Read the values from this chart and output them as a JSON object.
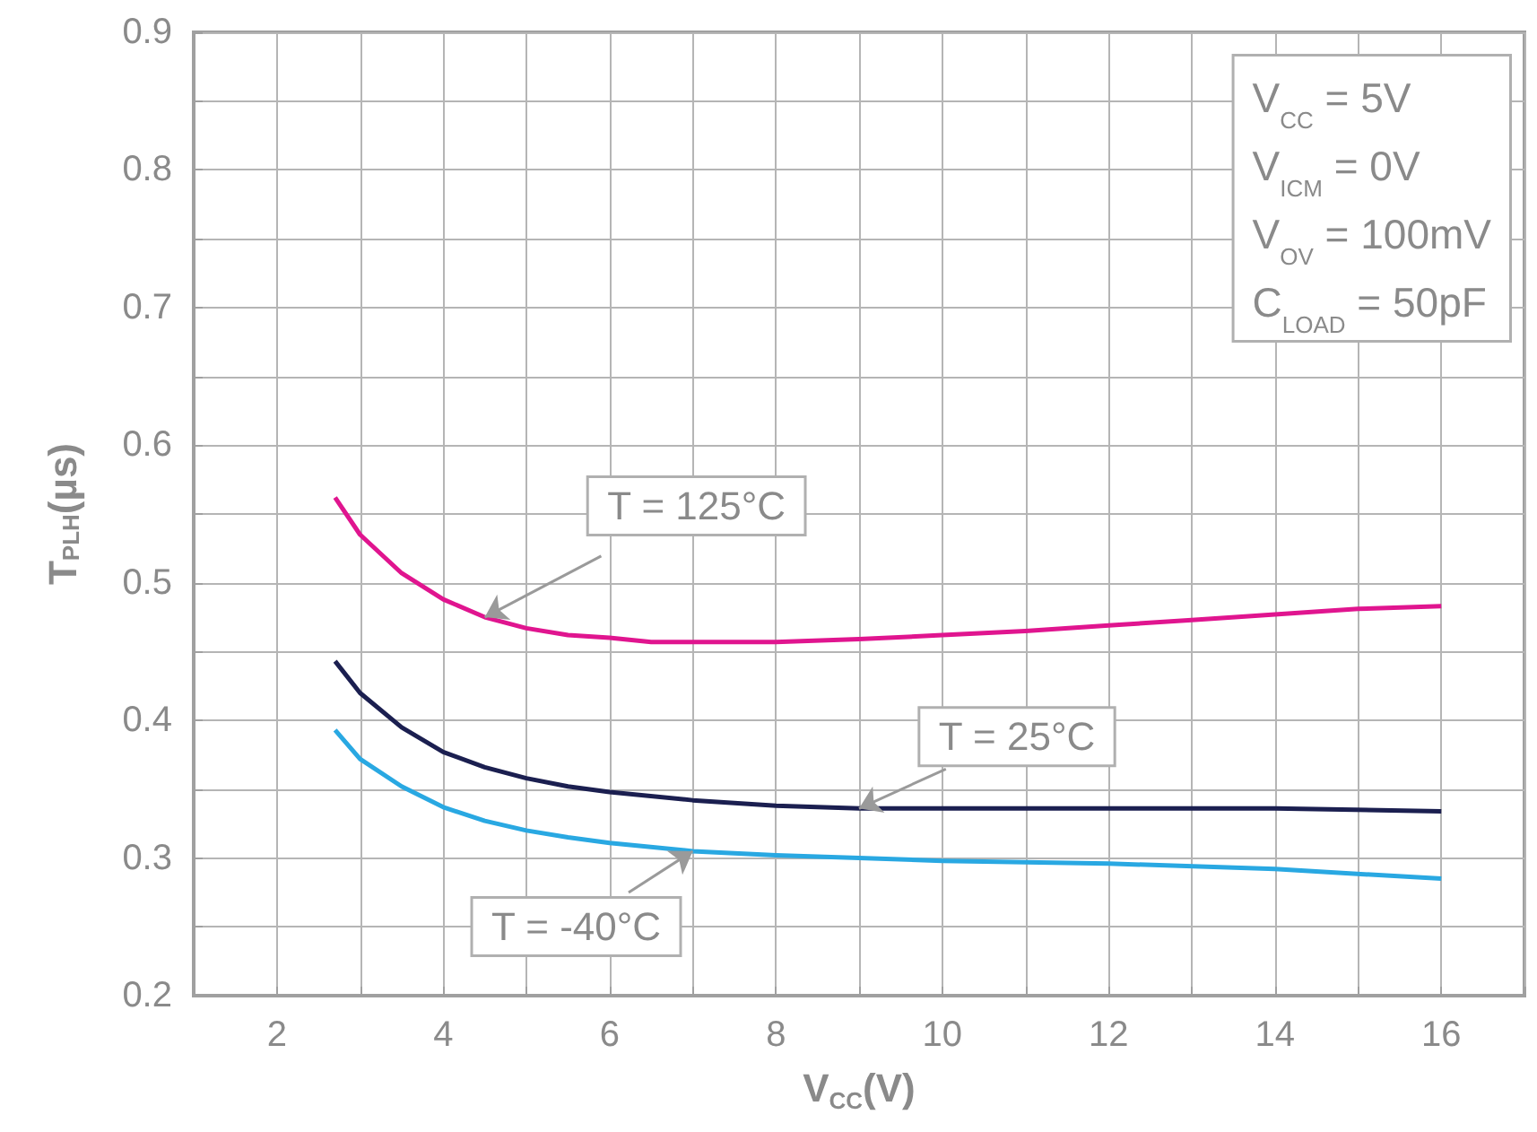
{
  "chart_data": {
    "type": "line",
    "xlabel": "V$_{CC}$(V)",
    "ylabel": "T$_{PLH}$(µs)",
    "xlim": [
      1,
      17
    ],
    "xticks": [
      {
        "value": 1,
        "label": null
      },
      2,
      {
        "value": 3,
        "label": null
      },
      4,
      {
        "value": 5,
        "label": null
      },
      6,
      {
        "value": 7,
        "label": null
      },
      8,
      {
        "value": 9,
        "label": null
      },
      10,
      {
        "value": 11,
        "label": null
      },
      12,
      {
        "value": 13,
        "label": null
      },
      14,
      {
        "value": 15,
        "label": null
      },
      16,
      {
        "value": 17,
        "label": null
      }
    ],
    "ylim": [
      0.2,
      0.9
    ],
    "yticks": [
      0.2,
      {
        "value": 0.25,
        "label": null
      },
      0.3,
      {
        "value": 0.35,
        "label": null
      },
      0.4,
      {
        "value": 0.45,
        "label": null
      },
      0.5,
      {
        "value": 0.55,
        "label": null
      },
      0.6,
      {
        "value": 0.65,
        "label": null
      },
      0.7,
      {
        "value": 0.75,
        "label": null
      },
      0.8,
      {
        "value": 0.85,
        "label": null
      },
      0.9
    ],
    "grid": true,
    "legend": false,
    "marker": "none",
    "line_style": "solid",
    "annotations": [
      "V$_{CC}$ = 5V",
      "V$_{ICM}$ = 0V",
      "V$_{OV}$ = 100mV",
      "C$_{LOAD}$ = 50pF"
    ],
    "series": [
      {
        "name": "T = 125°C",
        "color": "#e0158f",
        "x": [
          2.7,
          3,
          3.5,
          4,
          4.5,
          5,
          5.5,
          6,
          6.5,
          7,
          8,
          9,
          10,
          11,
          12,
          13,
          14,
          15,
          16
        ],
        "values": [
          0.562,
          0.535,
          0.507,
          0.488,
          0.475,
          0.467,
          0.462,
          0.46,
          0.457,
          0.457,
          0.457,
          0.459,
          0.462,
          0.465,
          0.469,
          0.473,
          0.477,
          0.481,
          0.483
        ]
      },
      {
        "name": "T = 25°C",
        "color": "#1b1f50",
        "x": [
          2.7,
          3,
          3.5,
          4,
          4.5,
          5,
          5.5,
          6,
          7,
          8,
          9,
          10,
          12,
          14,
          16
        ],
        "values": [
          0.443,
          0.42,
          0.395,
          0.377,
          0.366,
          0.358,
          0.352,
          0.348,
          0.342,
          0.338,
          0.336,
          0.336,
          0.336,
          0.336,
          0.334
        ]
      },
      {
        "name": "T = -40°C",
        "color": "#29a8e2",
        "x": [
          2.7,
          3,
          3.5,
          4,
          4.5,
          5,
          5.5,
          6,
          7,
          8,
          9,
          10,
          12,
          14,
          16
        ],
        "values": [
          0.393,
          0.372,
          0.352,
          0.337,
          0.327,
          0.32,
          0.315,
          0.311,
          0.305,
          0.302,
          0.3,
          0.298,
          0.296,
          0.292,
          0.285
        ]
      }
    ]
  }
}
